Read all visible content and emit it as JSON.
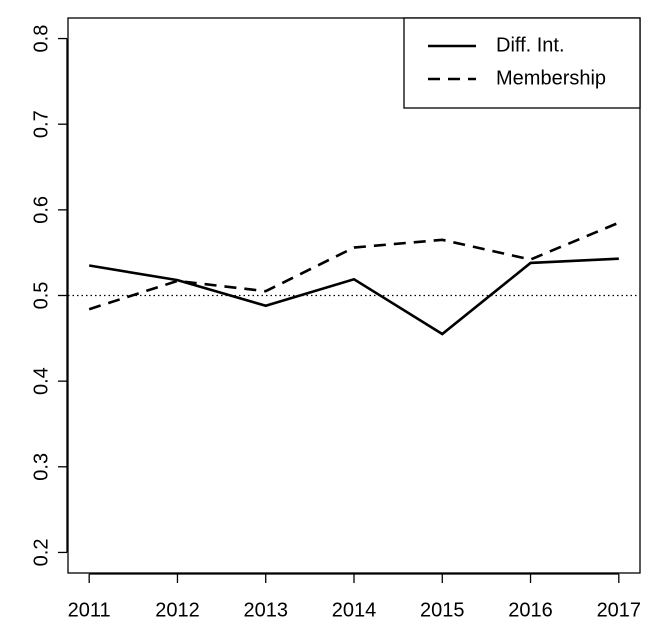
{
  "chart_data": {
    "type": "line",
    "x": [
      2011,
      2012,
      2013,
      2014,
      2015,
      2016,
      2017
    ],
    "series": [
      {
        "name": "Diff. Int.",
        "color": "#000000",
        "linestyle": "solid",
        "values": [
          0.535,
          0.518,
          0.488,
          0.519,
          0.455,
          0.538,
          0.543
        ]
      },
      {
        "name": "Membership",
        "color": "#000000",
        "linestyle": "dashed",
        "values": [
          0.484,
          0.517,
          0.505,
          0.556,
          0.565,
          0.542,
          0.585
        ]
      }
    ],
    "xlim": [
      2010.76,
      2017.24
    ],
    "xticks": [
      2011,
      2012,
      2013,
      2014,
      2015,
      2016,
      2017
    ],
    "ylim": [
      0.176,
      0.824
    ],
    "yticks": [
      0.2,
      0.3,
      0.4,
      0.5,
      0.6,
      0.7,
      0.8
    ],
    "hline": 0.5,
    "grid": false,
    "legend": "top-right"
  }
}
